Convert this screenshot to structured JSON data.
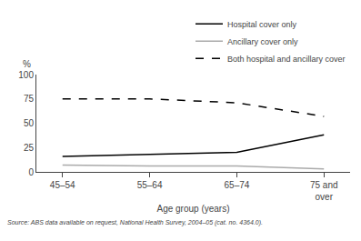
{
  "chart_data": {
    "type": "line",
    "categories": [
      "45–54",
      "55–64",
      "65–74",
      "75 and\nover"
    ],
    "series": [
      {
        "name": "Hospital cover only",
        "color": "#000000",
        "line_style": "solid",
        "values": [
          16,
          18,
          20,
          38
        ]
      },
      {
        "name": "Ancillary cover only",
        "color": "#aaaaaa",
        "line_style": "solid",
        "values": [
          7,
          6,
          6,
          3
        ]
      },
      {
        "name": "Both hospital and ancillary cover",
        "color": "#000000",
        "line_style": "dashed",
        "values": [
          75,
          75,
          71,
          57
        ]
      }
    ],
    "xlabel": "Age group (years)",
    "ylabel": "%",
    "ylim": [
      0,
      100
    ],
    "yticks": [
      0,
      25,
      50,
      75,
      100
    ],
    "grid": false,
    "legend": "upper right",
    "annotations": [
      "Source: ABS data available on request, National Health Survey, 2004–05 (cat. no. 4364.0)."
    ]
  }
}
